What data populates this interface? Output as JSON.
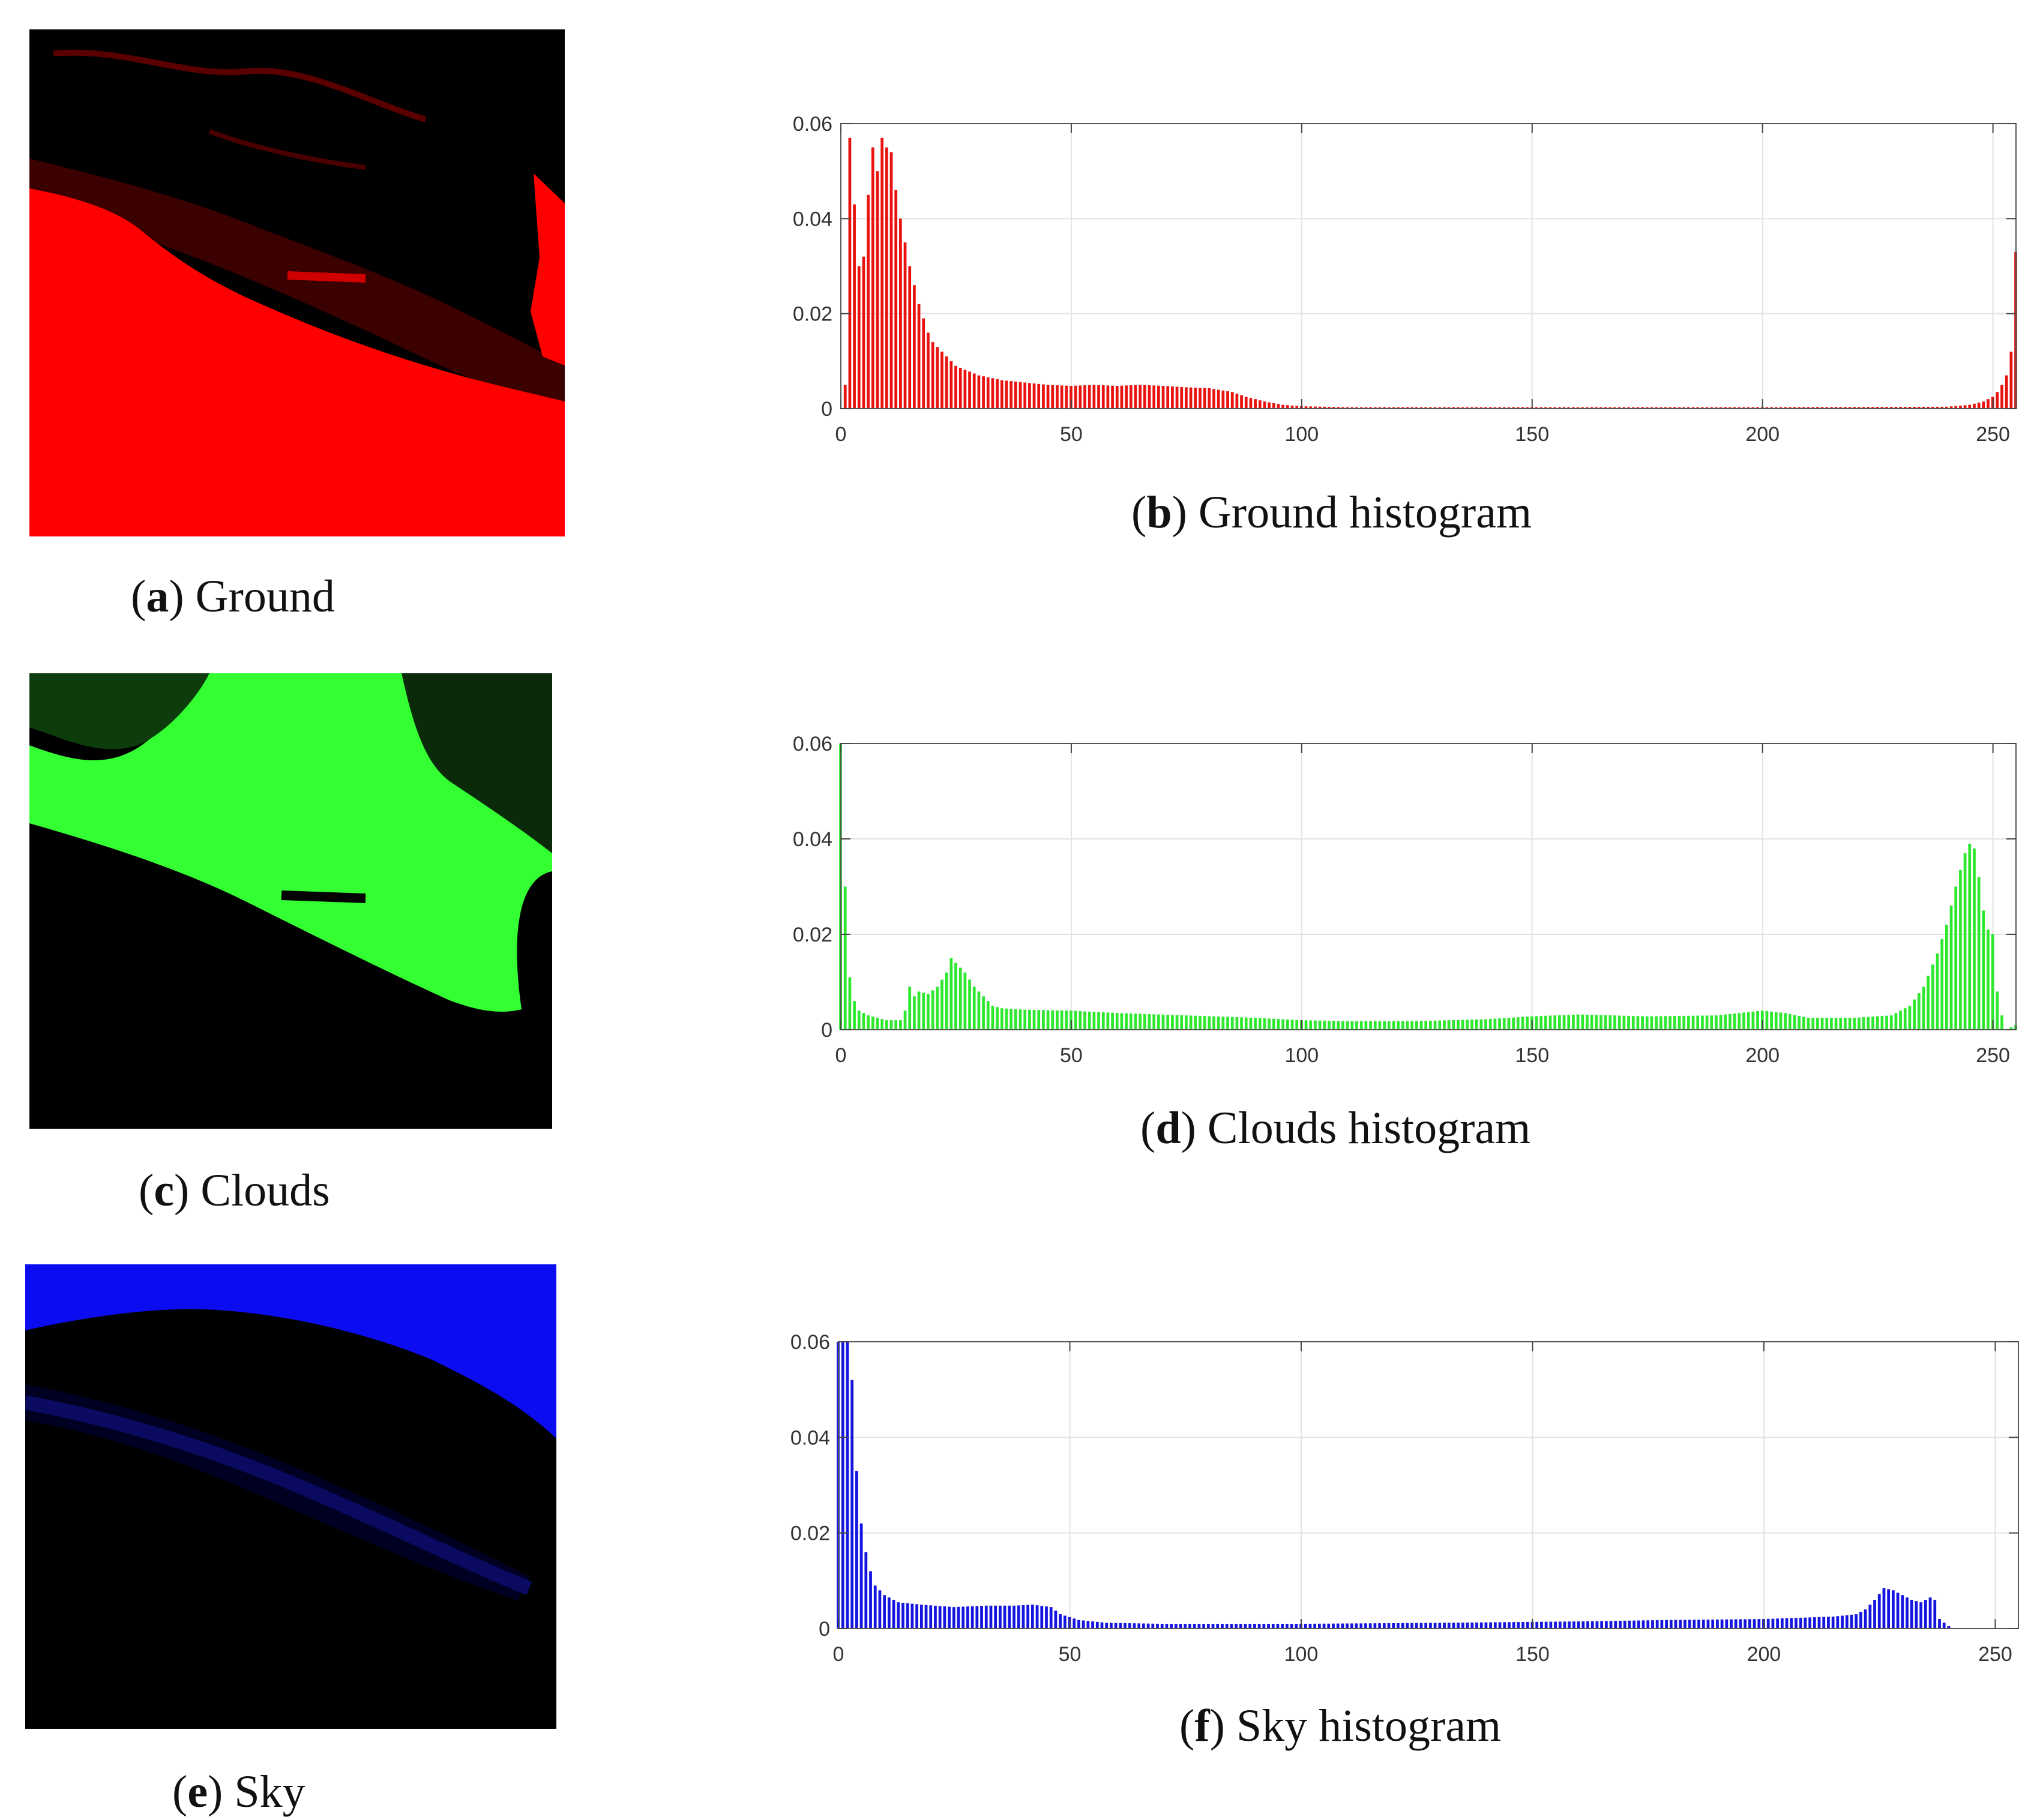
{
  "panels": [
    {
      "id": "a",
      "letter": "a",
      "caption": "Ground",
      "color": "#ff0000"
    },
    {
      "id": "c",
      "letter": "c",
      "caption": "Clouds",
      "color": "#00ff00"
    },
    {
      "id": "e",
      "letter": "e",
      "caption": "Sky",
      "color": "#0000ff"
    }
  ],
  "histogram_captions": {
    "b": {
      "letter": "b",
      "text": "Ground histogram"
    },
    "d": {
      "letter": "d",
      "text": "Clouds histogram"
    },
    "f": {
      "letter": "f",
      "text": "Sky histogram"
    }
  },
  "chart_data": [
    {
      "id": "b",
      "type": "bar",
      "title": "Ground histogram",
      "color": "#e8130f",
      "xlim": [
        0,
        255
      ],
      "ylim": [
        0,
        0.06
      ],
      "xticks": [
        0,
        50,
        100,
        150,
        200,
        250
      ],
      "xtick_labels": [
        "0",
        "50",
        "100",
        "150",
        "200",
        "250"
      ],
      "yticks": [
        0,
        0.02,
        0.04,
        0.06
      ],
      "ytick_labels": [
        "0",
        "0.02",
        "0.04",
        "0.06"
      ],
      "grid": true,
      "x_step": 1,
      "keypoints": [
        [
          0,
          0
        ],
        [
          1,
          0.005
        ],
        [
          2,
          0.057
        ],
        [
          3,
          0.043
        ],
        [
          4,
          0.03
        ],
        [
          5,
          0.032
        ],
        [
          6,
          0.045
        ],
        [
          7,
          0.055
        ],
        [
          8,
          0.05
        ],
        [
          9,
          0.057
        ],
        [
          10,
          0.055
        ],
        [
          11,
          0.054
        ],
        [
          12,
          0.046
        ],
        [
          13,
          0.04
        ],
        [
          14,
          0.035
        ],
        [
          15,
          0.03
        ],
        [
          16,
          0.026
        ],
        [
          17,
          0.022
        ],
        [
          18,
          0.019
        ],
        [
          19,
          0.016
        ],
        [
          20,
          0.014
        ],
        [
          22,
          0.012
        ],
        [
          25,
          0.009
        ],
        [
          30,
          0.007
        ],
        [
          35,
          0.006
        ],
        [
          40,
          0.0055
        ],
        [
          45,
          0.005
        ],
        [
          50,
          0.0048
        ],
        [
          55,
          0.005
        ],
        [
          60,
          0.0048
        ],
        [
          65,
          0.005
        ],
        [
          70,
          0.0048
        ],
        [
          75,
          0.0045
        ],
        [
          80,
          0.0043
        ],
        [
          85,
          0.0035
        ],
        [
          88,
          0.0025
        ],
        [
          92,
          0.0015
        ],
        [
          96,
          0.0008
        ],
        [
          100,
          0.0005
        ],
        [
          110,
          0.0003
        ],
        [
          150,
          0.0003
        ],
        [
          200,
          0.0003
        ],
        [
          240,
          0.0004
        ],
        [
          245,
          0.0008
        ],
        [
          248,
          0.0015
        ],
        [
          250,
          0.0025
        ],
        [
          251,
          0.0035
        ],
        [
          252,
          0.005
        ],
        [
          253,
          0.007
        ],
        [
          254,
          0.012
        ],
        [
          255,
          0.033
        ]
      ]
    },
    {
      "id": "d",
      "type": "bar",
      "title": "Clouds histogram",
      "color": "#2ee82e",
      "xlim": [
        0,
        255
      ],
      "ylim": [
        0,
        0.06
      ],
      "xticks": [
        0,
        50,
        100,
        150,
        200,
        250
      ],
      "xtick_labels": [
        "0",
        "50",
        "100",
        "150",
        "200",
        "250"
      ],
      "yticks": [
        0,
        0.02,
        0.04,
        0.06
      ],
      "ytick_labels": [
        "0",
        "0.02",
        "0.04",
        "0.06"
      ],
      "grid": true,
      "x_step": 1,
      "keypoints": [
        [
          0,
          0.06
        ],
        [
          1,
          0.03
        ],
        [
          2,
          0.011
        ],
        [
          3,
          0.006
        ],
        [
          4,
          0.004
        ],
        [
          6,
          0.003
        ],
        [
          8,
          0.0025
        ],
        [
          10,
          0.002
        ],
        [
          13,
          0.002
        ],
        [
          14,
          0.004
        ],
        [
          15,
          0.009
        ],
        [
          16,
          0.007
        ],
        [
          17,
          0.008
        ],
        [
          19,
          0.0075
        ],
        [
          21,
          0.009
        ],
        [
          23,
          0.012
        ],
        [
          24,
          0.015
        ],
        [
          25,
          0.014
        ],
        [
          27,
          0.012
        ],
        [
          29,
          0.009
        ],
        [
          31,
          0.007
        ],
        [
          33,
          0.005
        ],
        [
          35,
          0.0045
        ],
        [
          40,
          0.0042
        ],
        [
          50,
          0.004
        ],
        [
          60,
          0.0035
        ],
        [
          75,
          0.003
        ],
        [
          90,
          0.0025
        ],
        [
          100,
          0.002
        ],
        [
          110,
          0.0018
        ],
        [
          125,
          0.0018
        ],
        [
          140,
          0.0022
        ],
        [
          150,
          0.0028
        ],
        [
          160,
          0.0032
        ],
        [
          175,
          0.0028
        ],
        [
          190,
          0.003
        ],
        [
          200,
          0.004
        ],
        [
          205,
          0.0035
        ],
        [
          210,
          0.0025
        ],
        [
          220,
          0.0025
        ],
        [
          228,
          0.003
        ],
        [
          232,
          0.005
        ],
        [
          235,
          0.009
        ],
        [
          238,
          0.016
        ],
        [
          240,
          0.022
        ],
        [
          242,
          0.03
        ],
        [
          244,
          0.037
        ],
        [
          245,
          0.039
        ],
        [
          246,
          0.038
        ],
        [
          247,
          0.032
        ],
        [
          248,
          0.025
        ],
        [
          249,
          0.021
        ],
        [
          250,
          0.02
        ],
        [
          251,
          0.008
        ],
        [
          252,
          0.003
        ],
        [
          253,
          0
        ],
        [
          255,
          0.001
        ]
      ]
    },
    {
      "id": "f",
      "type": "bar",
      "title": "Sky histogram",
      "color": "#1515e0",
      "xlim": [
        0,
        255
      ],
      "ylim": [
        0,
        0.06
      ],
      "xticks": [
        0,
        50,
        100,
        150,
        200,
        250
      ],
      "xtick_labels": [
        "0",
        "50",
        "100",
        "150",
        "200",
        "250"
      ],
      "yticks": [
        0,
        0.02,
        0.04,
        0.06
      ],
      "ytick_labels": [
        "0",
        "0.02",
        "0.04",
        "0.06"
      ],
      "grid": true,
      "x_step": 1,
      "keypoints": [
        [
          0,
          0.06
        ],
        [
          1,
          0.06
        ],
        [
          2,
          0.06
        ],
        [
          3,
          0.052
        ],
        [
          4,
          0.033
        ],
        [
          5,
          0.022
        ],
        [
          6,
          0.016
        ],
        [
          7,
          0.012
        ],
        [
          8,
          0.009
        ],
        [
          10,
          0.007
        ],
        [
          13,
          0.0055
        ],
        [
          18,
          0.005
        ],
        [
          25,
          0.0045
        ],
        [
          32,
          0.0048
        ],
        [
          38,
          0.0048
        ],
        [
          42,
          0.005
        ],
        [
          46,
          0.0045
        ],
        [
          48,
          0.003
        ],
        [
          52,
          0.0018
        ],
        [
          58,
          0.0012
        ],
        [
          70,
          0.001
        ],
        [
          100,
          0.001
        ],
        [
          130,
          0.0012
        ],
        [
          160,
          0.0015
        ],
        [
          180,
          0.0018
        ],
        [
          200,
          0.002
        ],
        [
          215,
          0.0025
        ],
        [
          220,
          0.003
        ],
        [
          222,
          0.004
        ],
        [
          224,
          0.006
        ],
        [
          226,
          0.0085
        ],
        [
          228,
          0.008
        ],
        [
          230,
          0.007
        ],
        [
          232,
          0.006
        ],
        [
          234,
          0.0055
        ],
        [
          236,
          0.0065
        ],
        [
          237,
          0.006
        ],
        [
          238,
          0.002
        ],
        [
          240,
          0.0005
        ],
        [
          241,
          0
        ],
        [
          255,
          0
        ]
      ]
    }
  ]
}
